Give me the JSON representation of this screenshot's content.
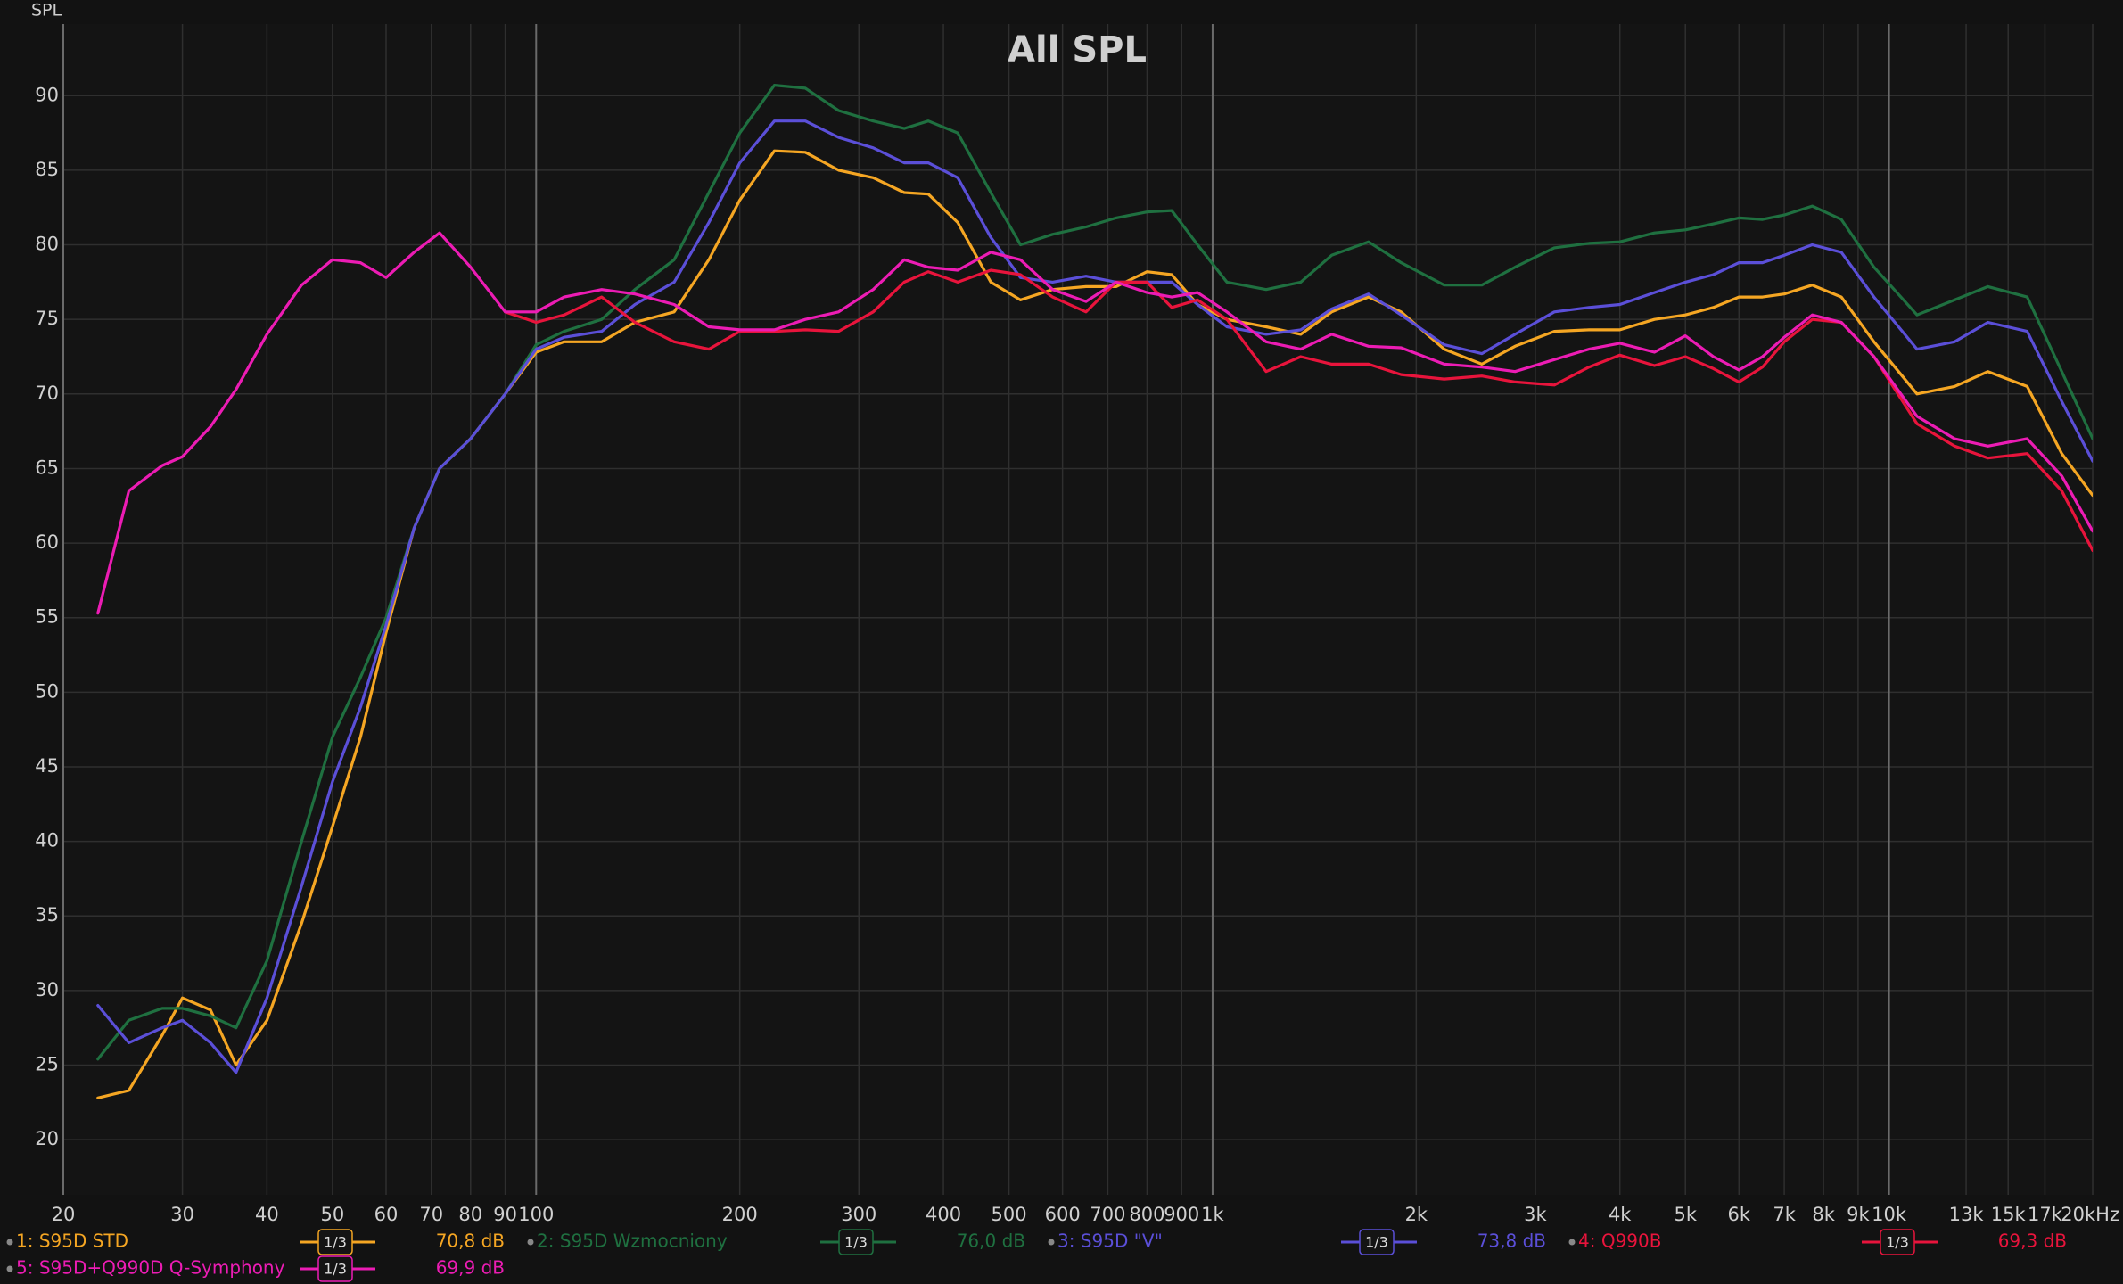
{
  "chart_data": {
    "type": "line",
    "title": "All SPL",
    "ylabel": "SPL",
    "log_x": true,
    "grid": true,
    "xlim": [
      20,
      20000
    ],
    "ylim": [
      16.3,
      94.8
    ],
    "yticks": [
      20,
      25,
      30,
      35,
      40,
      45,
      50,
      55,
      60,
      65,
      70,
      75,
      80,
      85,
      90
    ],
    "xticks": [
      20,
      30,
      40,
      50,
      60,
      70,
      80,
      90,
      100,
      200,
      300,
      400,
      500,
      600,
      700,
      800,
      900,
      {
        "value": 1000,
        "label": "1k"
      },
      {
        "value": 2000,
        "label": "2k"
      },
      {
        "value": 3000,
        "label": "3k"
      },
      {
        "value": 4000,
        "label": "4k"
      },
      {
        "value": 5000,
        "label": "5k"
      },
      {
        "value": 6000,
        "label": "6k"
      },
      {
        "value": 7000,
        "label": "7k"
      },
      {
        "value": 8000,
        "label": "8k"
      },
      {
        "value": 9000,
        "label": "9k"
      },
      {
        "value": 10000,
        "label": "10k"
      },
      {
        "value": 13000,
        "label": "13k"
      },
      {
        "value": 15000,
        "label": "15k"
      },
      {
        "value": 17000,
        "label": "17k"
      },
      {
        "value": 20000,
        "label": "20kHz"
      }
    ],
    "x": [
      22.5,
      25,
      28,
      30,
      33,
      36,
      40,
      45,
      50,
      55,
      60,
      66,
      72,
      80,
      90,
      100,
      110,
      125,
      140,
      160,
      180,
      200,
      225,
      250,
      280,
      315,
      350,
      380,
      420,
      470,
      520,
      580,
      650,
      720,
      800,
      870,
      950,
      1050,
      1200,
      1350,
      1500,
      1700,
      1900,
      2200,
      2500,
      2800,
      3200,
      3600,
      4000,
      4500,
      5000,
      5500,
      6000,
      6500,
      7000,
      7700,
      8500,
      9500,
      11000,
      12500,
      14000,
      16000,
      18000,
      20000
    ],
    "series": [
      {
        "name": "1: S95D STD",
        "color": "#f5a623",
        "smoothing": "1/3",
        "level": "70,8 dB",
        "values": [
          22.8,
          23.3,
          27,
          29.5,
          28.7,
          25,
          28,
          34.5,
          41,
          47,
          54,
          61,
          65,
          67,
          70,
          72.8,
          73.5,
          73.5,
          74.8,
          75.5,
          79,
          83,
          86.3,
          86.2,
          85,
          84.5,
          83.5,
          83.4,
          81.5,
          77.5,
          76.3,
          77,
          77.2,
          77.2,
          78.2,
          78,
          76,
          75,
          74.5,
          74,
          75.5,
          76.5,
          75.5,
          73,
          72,
          73.2,
          74.2,
          74.3,
          74.3,
          75,
          75.3,
          75.8,
          76.5,
          76.5,
          76.7,
          77.3,
          76.5,
          73.5,
          70,
          70.5,
          71.5,
          70.5,
          66,
          63.2
        ]
      },
      {
        "name": "2: S95D Wzmocniony",
        "color": "#1f7040",
        "smoothing": "1/3",
        "level": "76,0 dB",
        "values": [
          25.4,
          28,
          28.8,
          28.8,
          28.3,
          27.5,
          32,
          40,
          47,
          51,
          55,
          61,
          65,
          67,
          70,
          73.3,
          74.2,
          75,
          77,
          79,
          83.5,
          87.5,
          90.7,
          90.5,
          89,
          88.3,
          87.8,
          88.3,
          87.5,
          83.5,
          80,
          80.7,
          81.2,
          81.8,
          82.2,
          82.3,
          80,
          77.5,
          77,
          77.5,
          79.3,
          80.2,
          78.8,
          77.3,
          77.3,
          78.5,
          79.8,
          80.1,
          80.2,
          80.8,
          81,
          81.4,
          81.8,
          81.7,
          82,
          82.6,
          81.7,
          78.5,
          75.3,
          76.3,
          77.2,
          76.5,
          71.5,
          67
        ]
      },
      {
        "name": "3: S95D \"V\"",
        "color": "#5b4fd8",
        "smoothing": "1/3",
        "level": "73,8 dB",
        "values": [
          29,
          26.5,
          27.5,
          28,
          26.5,
          24.5,
          29.5,
          37,
          44,
          49,
          54.5,
          61,
          65,
          67,
          70,
          73,
          73.8,
          74.2,
          76,
          77.5,
          81.5,
          85.5,
          88.3,
          88.3,
          87.2,
          86.5,
          85.5,
          85.5,
          84.5,
          80.5,
          77.8,
          77.5,
          77.9,
          77.5,
          77.5,
          77.5,
          76,
          74.5,
          74,
          74.3,
          75.7,
          76.7,
          75.3,
          73.3,
          72.7,
          74,
          75.5,
          75.8,
          76,
          76.8,
          77.5,
          78,
          78.8,
          78.8,
          79.3,
          80,
          79.5,
          76.5,
          73,
          73.5,
          74.8,
          74.2,
          69.5,
          65.5
        ]
      },
      {
        "name": "4: Q990B",
        "color": "#e8143c",
        "smoothing": "1/3",
        "level": "69,3 dB",
        "values": [
          null,
          null,
          null,
          null,
          null,
          null,
          null,
          null,
          null,
          null,
          null,
          null,
          null,
          null,
          75.5,
          74.8,
          75.3,
          76.5,
          74.8,
          73.5,
          73,
          74.2,
          74.2,
          74.3,
          74.2,
          75.5,
          77.5,
          78.2,
          77.5,
          78.3,
          78,
          76.5,
          75.5,
          77.5,
          77.5,
          75.8,
          76.3,
          75,
          71.5,
          72.5,
          72,
          72,
          71.3,
          71,
          71.2,
          70.8,
          70.6,
          71.8,
          72.6,
          71.9,
          72.5,
          71.7,
          70.8,
          71.8,
          73.5,
          75,
          74.8,
          72.5,
          68,
          66.5,
          65.7,
          66,
          63.5,
          59.5
        ]
      },
      {
        "name": "5: S95D+Q990D Q-Symphony",
        "color": "#ec1cb4",
        "smoothing": "1/3",
        "level": "69,9 dB",
        "values": [
          55.3,
          63.5,
          65.2,
          65.8,
          67.8,
          70.3,
          74,
          77.3,
          79,
          78.8,
          77.8,
          79.5,
          80.8,
          78.5,
          75.5,
          75.5,
          76.5,
          77,
          76.7,
          76,
          74.5,
          74.3,
          74.3,
          75,
          75.5,
          77,
          79,
          78.5,
          78.3,
          79.5,
          79,
          77,
          76.2,
          77.5,
          76.8,
          76.5,
          76.8,
          75.5,
          73.5,
          73,
          74,
          73.2,
          73.1,
          72,
          71.8,
          71.5,
          72.3,
          73,
          73.4,
          72.8,
          73.9,
          72.5,
          71.6,
          72.5,
          73.8,
          75.3,
          74.8,
          72.5,
          68.5,
          67,
          66.5,
          67,
          64.5,
          60.8
        ]
      }
    ]
  }
}
